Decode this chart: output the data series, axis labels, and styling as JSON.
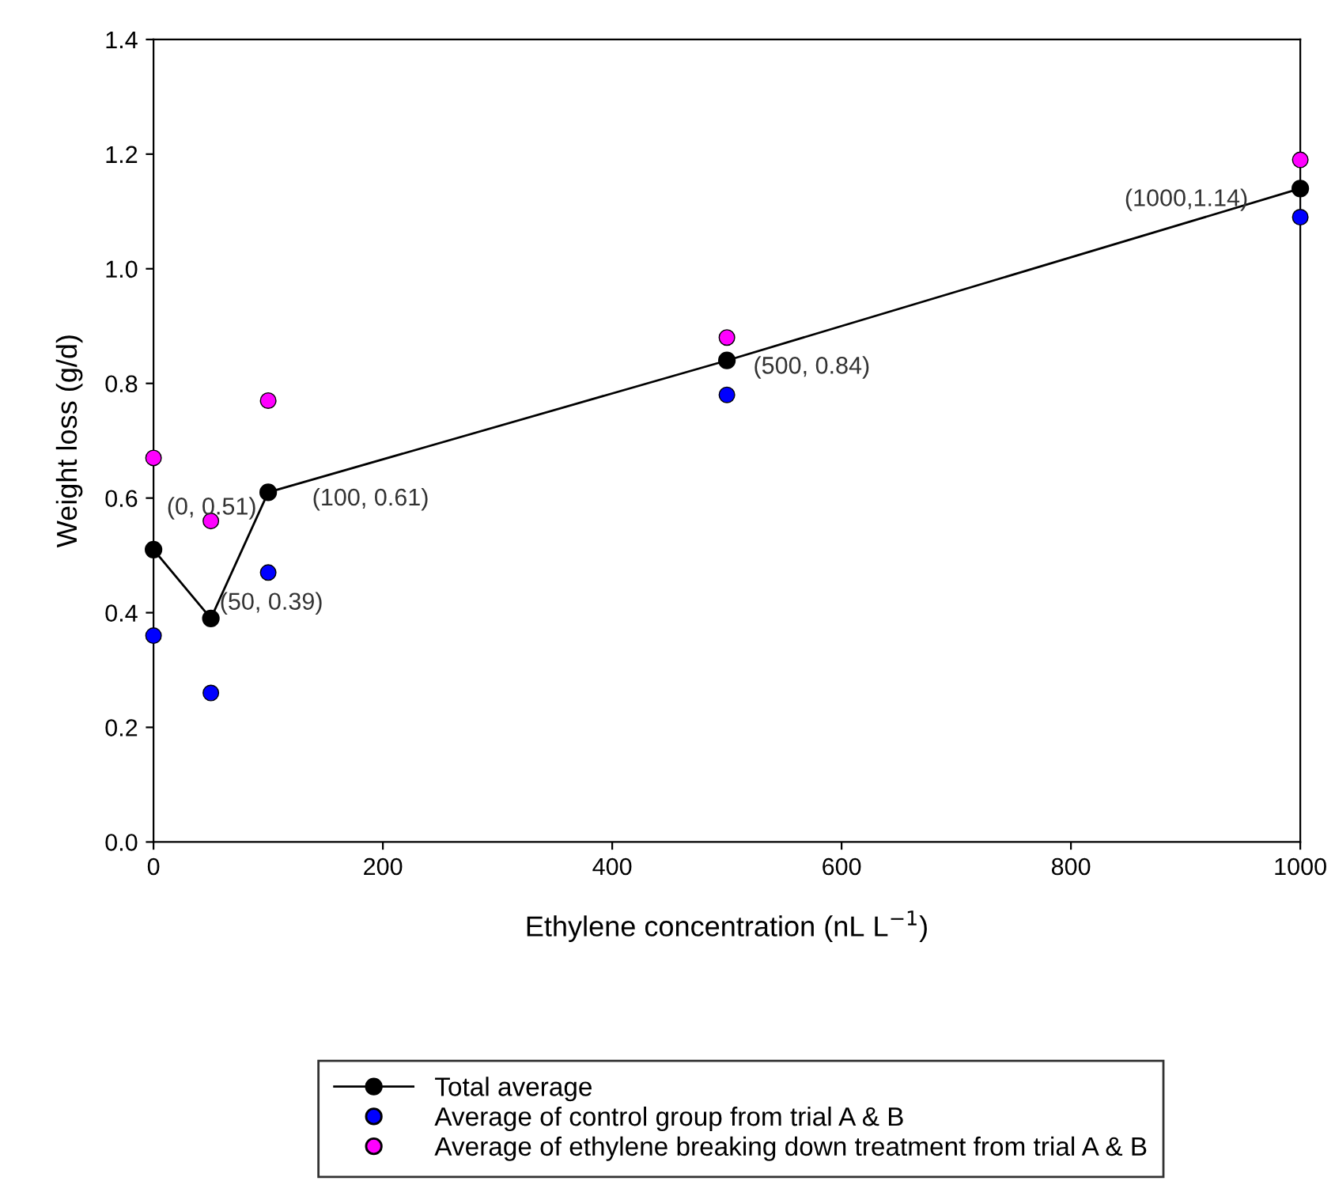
{
  "chart_data": {
    "type": "line",
    "xlabel": "Ethylene concentration (nL L$^{−1}$)",
    "ylabel": "Weight loss (g/d)",
    "x": [
      0,
      50,
      100,
      500,
      1000
    ],
    "series": [
      {
        "name": "Total average",
        "color": "#000000",
        "marker": "circle",
        "values": [
          0.51,
          0.39,
          0.61,
          0.84,
          1.14
        ]
      },
      {
        "name": "Average of control group from trial A & B",
        "type": "scatter",
        "color": "#0000ff",
        "marker": "circle",
        "values": [
          0.36,
          0.26,
          0.47,
          0.78,
          1.09
        ]
      },
      {
        "name": "Average of ethylene breaking down treatment from trial A & B",
        "type": "scatter",
        "color": "#ff00ff",
        "marker": "circle",
        "values": [
          0.67,
          0.56,
          0.77,
          0.88,
          1.19
        ]
      }
    ],
    "annotations": [
      {
        "text": "(0, 0.51)",
        "x": 0,
        "y": 0.51
      },
      {
        "text": "(50, 0.39)",
        "x": 50,
        "y": 0.39
      },
      {
        "text": "(100, 0.61)",
        "x": 100,
        "y": 0.61
      },
      {
        "text": "(500, 0.84)",
        "x": 500,
        "y": 0.84
      },
      {
        "text": "(1000,1.14)",
        "x": 1000,
        "y": 1.14
      }
    ],
    "xlim": [
      0,
      1000
    ],
    "xticks": [
      0,
      200,
      400,
      600,
      800,
      1000
    ],
    "ylim": [
      0,
      1.4
    ],
    "yticks": [
      {
        "value": 0,
        "label": "0.0"
      },
      0.2,
      0.4,
      0.6,
      0.8,
      {
        "value": 1,
        "label": "1.0"
      },
      1.2,
      1.4
    ],
    "grid": false,
    "legend": "bottom"
  }
}
